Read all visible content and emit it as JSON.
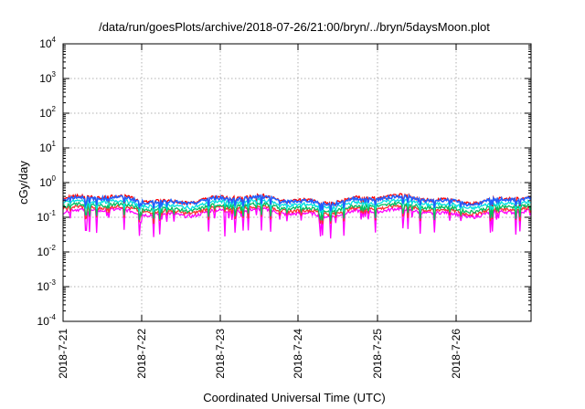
{
  "chart_data": {
    "type": "line",
    "title": "/data/run/goesPlots/archive/2018-07-26/21:00/bryn/../bryn/5daysMoon.plot",
    "xlabel": "Coordinated Universal Time (UTC)",
    "ylabel": "cGy/day",
    "x_tick_labels": [
      "2018-7-21",
      "2018-7-22",
      "2018-7-23",
      "2018-7-24",
      "2018-7-25",
      "2018-7-26"
    ],
    "y_scale": "log",
    "ylim": [
      0.0001,
      10000
    ],
    "y_tick_bases": [
      "10",
      "10",
      "10",
      "10",
      "10",
      "10",
      "10",
      "10",
      "10"
    ],
    "y_tick_exponents": [
      "-4",
      "-3",
      "-2",
      "-1",
      "0",
      "1",
      "2",
      "3",
      "4"
    ],
    "x_range_days": [
      2018.0721,
      2018.0726
    ],
    "grid": true,
    "series": [
      {
        "color": "#ff00ff",
        "base": 0.14
      },
      {
        "color": "#ff3030",
        "base": 0.17
      },
      {
        "color": "#00c060",
        "base": 0.2
      },
      {
        "color": "#00e0e0",
        "base": 0.25
      },
      {
        "color": "#ff0000",
        "base": 0.34
      },
      {
        "color": "#2060ff",
        "base": 0.32
      }
    ]
  }
}
